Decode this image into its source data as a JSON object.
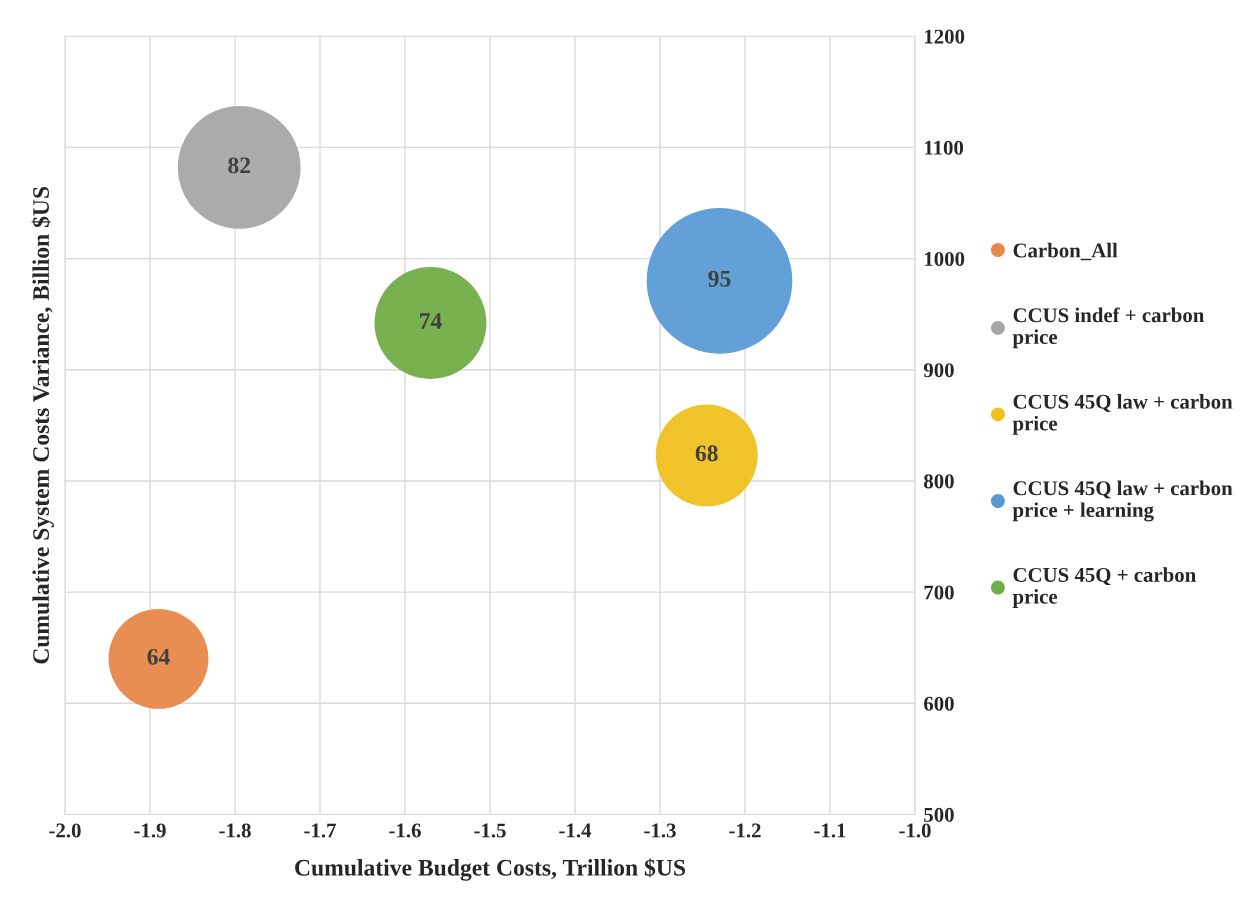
{
  "chart_data": {
    "type": "bubble",
    "xlabel": "Cumulative Budget Costs, Trillion $US",
    "ylabel": "Cumulative System Costs Variance, Billion $US",
    "xlim": [
      -2.0,
      -1.0
    ],
    "xticks": [
      {
        "value": -2.0,
        "label": "-2.0"
      },
      {
        "value": -1.9,
        "label": "-1.9"
      },
      {
        "value": -1.8,
        "label": "-1.8"
      },
      {
        "value": -1.7,
        "label": "-1.7"
      },
      {
        "value": -1.6,
        "label": "-1.6"
      },
      {
        "value": -1.5,
        "label": "-1.5"
      },
      {
        "value": -1.4,
        "label": "-1.4"
      },
      {
        "value": -1.3,
        "label": "-1.3"
      },
      {
        "value": -1.2,
        "label": "-1.2"
      },
      {
        "value": -1.1,
        "label": "-1.1"
      },
      {
        "value": -1.0,
        "label": "-1.0"
      }
    ],
    "ylim": [
      500,
      1200
    ],
    "yticks": [
      500,
      600,
      700,
      800,
      900,
      1000,
      1100,
      1200
    ],
    "grid": true,
    "legend": "right",
    "annotations": [
      {
        "text": "64",
        "x": -1.89,
        "y": 640
      },
      {
        "text": "82",
        "x": -1.795,
        "y": 1082
      },
      {
        "text": "68",
        "x": -1.245,
        "y": 823
      },
      {
        "text": "95",
        "x": -1.23,
        "y": 980
      },
      {
        "text": "74",
        "x": -1.57,
        "y": 942
      }
    ],
    "series": [
      {
        "name": "Carbon_All",
        "color": "#e8884a",
        "x": [
          -1.89
        ],
        "values": [
          640
        ],
        "sizes": [
          0.47
        ]
      },
      {
        "name": "CCUS indef + carbon price",
        "color": "#a6a6a6",
        "x": [
          -1.795
        ],
        "values": [
          1082
        ],
        "sizes": [
          0.71
        ]
      },
      {
        "name": "CCUS 45Q law + carbon price",
        "color": "#f0c020",
        "x": [
          -1.245
        ],
        "values": [
          823
        ],
        "sizes": [
          0.49
        ]
      },
      {
        "name": "CCUS 45Q law + carbon price + learning",
        "color": "#5b9bd5",
        "x": [
          -1.23
        ],
        "values": [
          980
        ],
        "sizes": [
          1.0
        ]
      },
      {
        "name": "CCUS 45Q + carbon price",
        "color": "#70ad47",
        "x": [
          -1.57
        ],
        "values": [
          942
        ],
        "sizes": [
          0.59
        ]
      }
    ]
  }
}
